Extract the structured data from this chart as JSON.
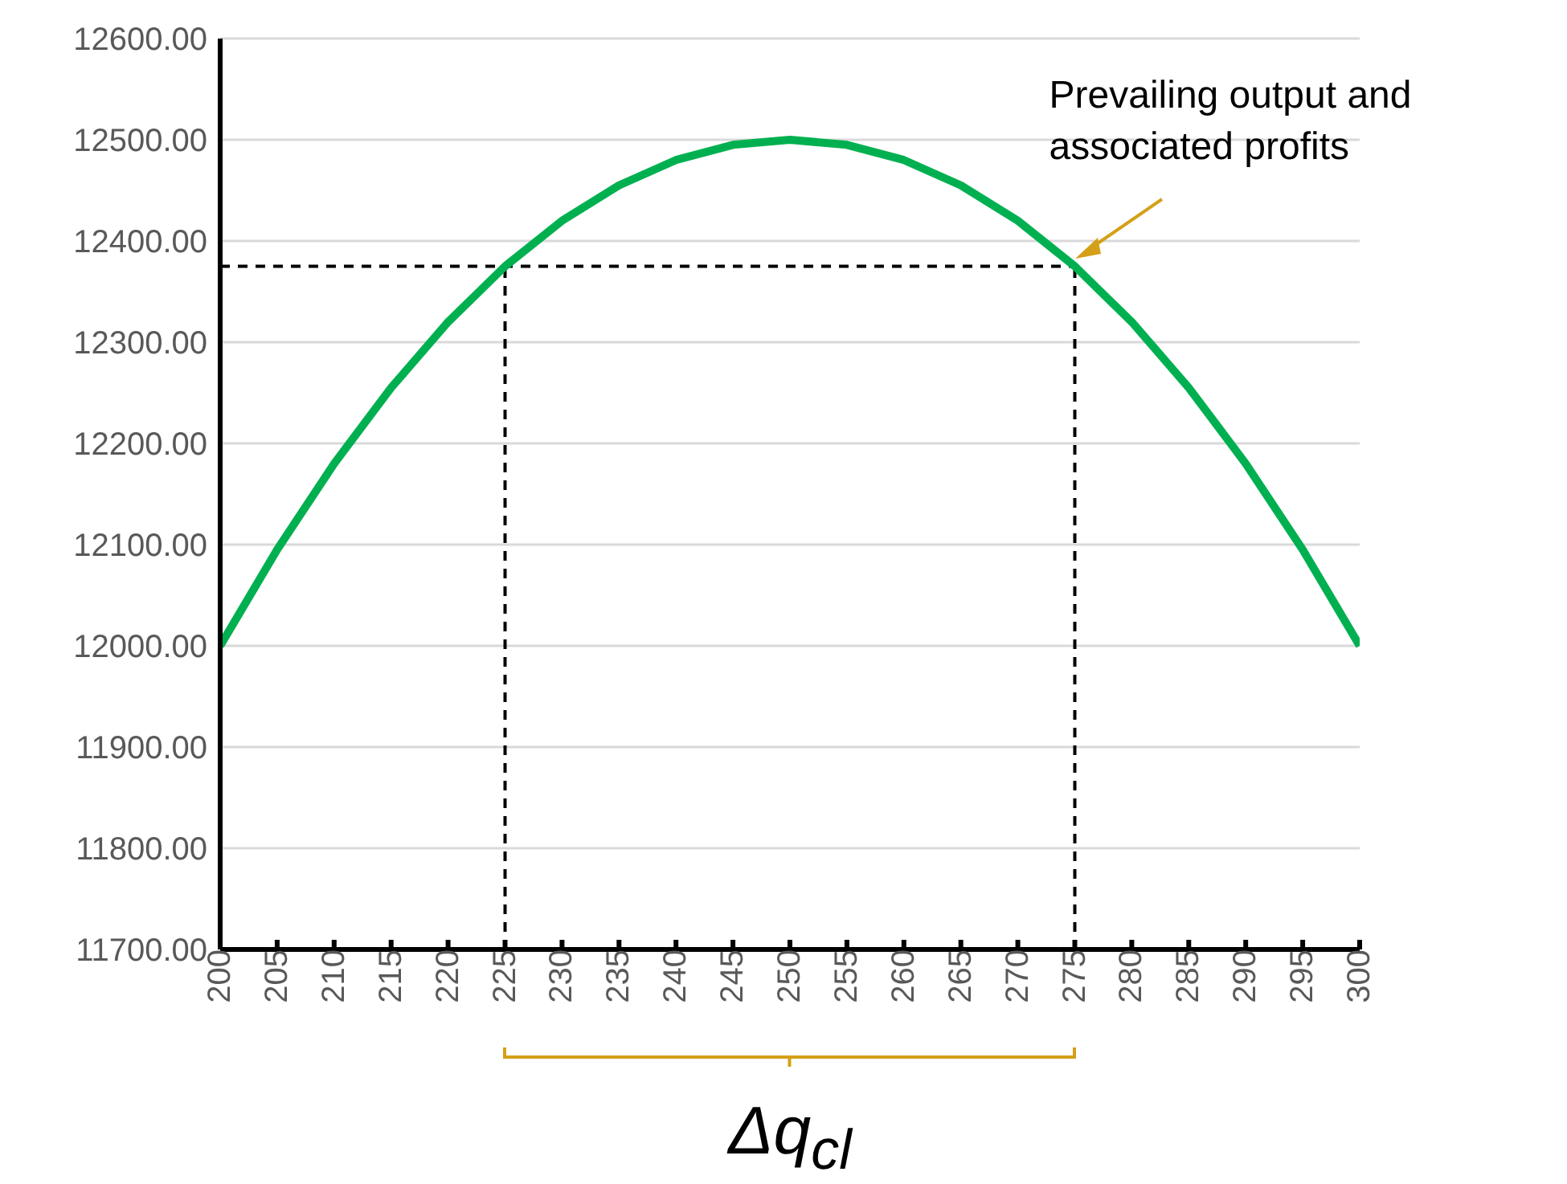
{
  "chart_data": {
    "type": "line",
    "x": [
      200,
      205,
      210,
      215,
      220,
      225,
      230,
      235,
      240,
      245,
      250,
      255,
      260,
      265,
      270,
      275,
      280,
      285,
      290,
      295,
      300
    ],
    "series": [
      {
        "color": "#00b050",
        "values": [
          12000,
          12095,
          12180,
          12255,
          12320,
          12375,
          12420,
          12455,
          12480,
          12495,
          12500,
          12495,
          12480,
          12455,
          12420,
          12375,
          12320,
          12255,
          12180,
          12095,
          12000
        ]
      }
    ],
    "xlim": [
      200,
      300
    ],
    "xticks": [
      200,
      205,
      210,
      215,
      220,
      225,
      230,
      235,
      240,
      245,
      250,
      255,
      260,
      265,
      270,
      275,
      280,
      285,
      290,
      295,
      300
    ],
    "ylim": [
      11700,
      12600
    ],
    "yticks": [
      {
        "value": 11700,
        "label": "11700.00"
      },
      {
        "value": 11800,
        "label": "11800.00"
      },
      {
        "value": 11900,
        "label": "11900.00"
      },
      {
        "value": 12000,
        "label": "12000.00"
      },
      {
        "value": 12100,
        "label": "12100.00"
      },
      {
        "value": 12200,
        "label": "12200.00"
      },
      {
        "value": 12300,
        "label": "12300.00"
      },
      {
        "value": 12400,
        "label": "12400.00"
      },
      {
        "value": 12500,
        "label": "12500.00"
      },
      {
        "value": 12600,
        "label": "12600.00"
      }
    ],
    "grid": "y",
    "marker": "none",
    "line_style": "solid",
    "ref_lines": [
      {
        "axis": "y",
        "value": 12375,
        "color": "#000000",
        "line_style": "dashed"
      },
      {
        "axis": "x",
        "value": 225,
        "color": "#000000",
        "line_style": "dashed"
      },
      {
        "axis": "x",
        "value": 275,
        "color": "#000000",
        "line_style": "dashed"
      }
    ],
    "annotations": [
      {
        "text": "Prevailing output and associated profits",
        "x": 275,
        "y": 12375
      },
      "Δq$_{cl}$"
    ]
  }
}
